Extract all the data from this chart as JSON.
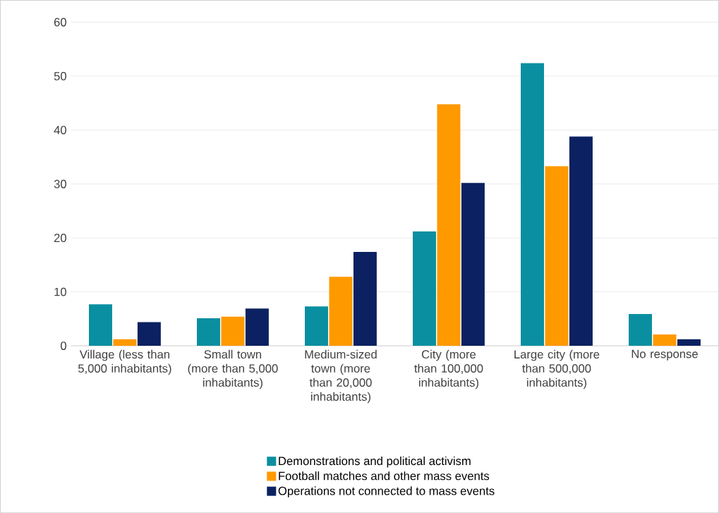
{
  "chart_data": {
    "type": "bar",
    "categories": [
      "Village (less than 5,000 inhabitants)",
      "Small town (more than 5,000 inhabitants)",
      "Medium-sized town (more than 20,000 inhabitants)",
      "City (more than 100,000 inhabitants)",
      "Large city (more than 500,000 inhabitants)",
      "No response"
    ],
    "series": [
      {
        "name": "Demonstrations and political activism",
        "color": "#0a8fa1",
        "values": [
          7.7,
          5.1,
          7.3,
          21.2,
          52.4,
          5.9
        ]
      },
      {
        "name": "Football matches and other mass events",
        "color": "#ff9900",
        "values": [
          1.2,
          5.4,
          12.8,
          44.8,
          33.3,
          2.1
        ]
      },
      {
        "name": "Operations not connected to mass events",
        "color": "#0b2161",
        "values": [
          4.4,
          6.9,
          17.4,
          30.2,
          38.8,
          1.2
        ]
      }
    ],
    "ylim": [
      0,
      60
    ],
    "yticks": [
      0,
      10,
      20,
      30,
      40,
      50,
      60
    ],
    "grid": "y",
    "legend": "bottom"
  }
}
